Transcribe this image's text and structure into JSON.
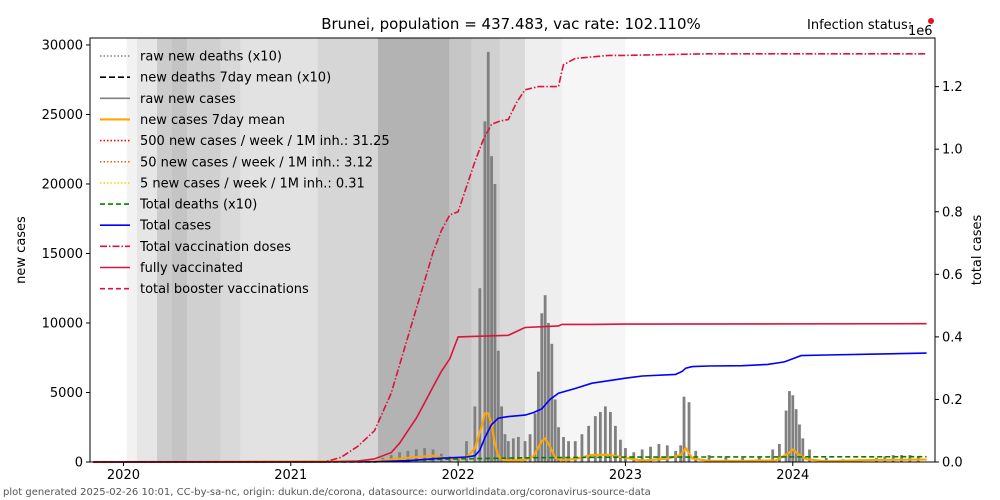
{
  "chart_data": {
    "type": "bar",
    "title": "Brunei, population = 437.483, vac rate: 102.110%",
    "infection_status_label": "Infection status:",
    "infection_status_color": "#e8101e",
    "ylabel": "new cases",
    "y2label": "total cases",
    "y2_exponent": "1e6",
    "xlim": [
      2019.8,
      2024.85
    ],
    "ylim": [
      0,
      30500
    ],
    "y2lim": [
      0,
      1.3555
    ],
    "x_ticks": [
      2020,
      2021,
      2022,
      2023,
      2024
    ],
    "x_tick_labels": [
      "2020",
      "2021",
      "2022",
      "2023",
      "2024"
    ],
    "y_ticks": [
      0,
      5000,
      10000,
      15000,
      20000,
      25000,
      30000
    ],
    "y_tick_labels": [
      "0",
      "5000",
      "10000",
      "15000",
      "20000",
      "25000",
      "30000"
    ],
    "y2_ticks": [
      0,
      0.2,
      0.4,
      0.6,
      0.8,
      1.0,
      1.2
    ],
    "y2_tick_labels": [
      "0.0",
      "0.2",
      "0.4",
      "0.6",
      "0.8",
      "1.0",
      "1.2"
    ],
    "legend": [
      {
        "label": "raw new deaths (x10)",
        "color": "#808080",
        "dash": "1.5,2"
      },
      {
        "label": "new deaths 7day mean (x10)",
        "color": "#000000",
        "dash": "6,3"
      },
      {
        "label": "raw new cases",
        "color": "#808080",
        "dash": ""
      },
      {
        "label": "new cases 7day mean",
        "color": "#ffa500",
        "dash": ""
      },
      {
        "label": "500 new cases / week / 1M inh.: 31.25",
        "color": "#ff0000",
        "dash": "1.5,2"
      },
      {
        "label": "50 new cases / week / 1M inh.: 3.12",
        "color": "#d2691e",
        "dash": "1.5,2"
      },
      {
        "label": "5 new cases / week / 1M inh.: 0.31",
        "color": "#ffd700",
        "dash": "1.5,2"
      },
      {
        "label": "Total deaths (x10)",
        "color": "#008000",
        "dash": "5,3"
      },
      {
        "label": "Total cases",
        "color": "#0000ff",
        "dash": ""
      },
      {
        "label": "Total vaccination doses",
        "color": "#dc143c",
        "dash": "7,2,1.5,2"
      },
      {
        "label": "fully vaccinated",
        "color": "#dc143c",
        "dash": ""
      },
      {
        "label": "total booster vaccinations",
        "color": "#dc143c",
        "dash": "5,3"
      }
    ],
    "background_bands": [
      {
        "x0": 2020.02,
        "x1": 2020.08,
        "shade": "#f2f2f2"
      },
      {
        "x0": 2020.08,
        "x1": 2020.2,
        "shade": "#e6e6e6"
      },
      {
        "x0": 2020.2,
        "x1": 2020.29,
        "shade": "#cccccc"
      },
      {
        "x0": 2020.29,
        "x1": 2020.38,
        "shade": "#c4c4c4"
      },
      {
        "x0": 2020.38,
        "x1": 2020.58,
        "shade": "#d0d0d0"
      },
      {
        "x0": 2020.58,
        "x1": 2020.7,
        "shade": "#d9d9d9"
      },
      {
        "x0": 2020.7,
        "x1": 2021.16,
        "shade": "#e2e2e2"
      },
      {
        "x0": 2021.16,
        "x1": 2021.52,
        "shade": "#d6d6d6"
      },
      {
        "x0": 2021.52,
        "x1": 2021.95,
        "shade": "#b3b3b3"
      },
      {
        "x0": 2021.95,
        "x1": 2022.08,
        "shade": "#c6c6c6"
      },
      {
        "x0": 2022.08,
        "x1": 2022.25,
        "shade": "#d0d0d0"
      },
      {
        "x0": 2022.25,
        "x1": 2022.4,
        "shade": "#dadada"
      },
      {
        "x0": 2022.4,
        "x1": 2022.62,
        "shade": "#eeeeee"
      },
      {
        "x0": 2022.62,
        "x1": 2023.0,
        "shade": "#f6f6f6"
      }
    ],
    "series": [
      {
        "name": "raw new cases",
        "kind": "bars",
        "axis": "left",
        "color": "#808080",
        "x": [
          2021.55,
          2021.6,
          2021.65,
          2021.7,
          2021.75,
          2021.8,
          2021.85,
          2021.9,
          2021.95,
          2022.0,
          2022.05,
          2022.1,
          2022.13,
          2022.16,
          2022.18,
          2022.2,
          2022.22,
          2022.24,
          2022.26,
          2022.28,
          2022.3,
          2022.33,
          2022.36,
          2022.4,
          2022.43,
          2022.46,
          2022.48,
          2022.5,
          2022.52,
          2022.54,
          2022.56,
          2022.58,
          2022.6,
          2022.63,
          2022.66,
          2022.7,
          2022.74,
          2022.78,
          2022.82,
          2022.85,
          2022.88,
          2022.91,
          2022.94,
          2022.97,
          2023.0,
          2023.05,
          2023.1,
          2023.15,
          2023.2,
          2023.25,
          2023.3,
          2023.33,
          2023.35,
          2023.38,
          2023.42,
          2023.5,
          2023.6,
          2023.7,
          2023.8,
          2023.88,
          2023.92,
          2023.96,
          2023.98,
          2024.0,
          2024.02,
          2024.04,
          2024.06,
          2024.1,
          2024.2,
          2024.3,
          2024.4,
          2024.5,
          2024.55,
          2024.6,
          2024.65,
          2024.7,
          2024.75
        ],
        "values": [
          300,
          500,
          700,
          800,
          900,
          1000,
          900,
          600,
          400,
          300,
          1500,
          4000,
          12500,
          24500,
          29500,
          22000,
          20000,
          8000,
          4000,
          2000,
          1500,
          1700,
          1800,
          1500,
          2000,
          3500,
          6500,
          10700,
          12000,
          10000,
          8500,
          4500,
          2500,
          1800,
          1500,
          1500,
          2000,
          2600,
          3300,
          3600,
          4000,
          3600,
          2600,
          1600,
          1000,
          700,
          900,
          1100,
          1300,
          1200,
          800,
          1200,
          4700,
          4300,
          800,
          500,
          400,
          300,
          400,
          900,
          1300,
          3700,
          5100,
          4800,
          3800,
          2700,
          1700,
          900,
          300,
          200,
          200,
          300,
          400,
          500,
          500,
          500,
          400
        ]
      },
      {
        "name": "new cases 7day mean",
        "kind": "line",
        "axis": "left",
        "color": "#ffa500",
        "x": [
          2019.82,
          2021.5,
          2021.7,
          2021.85,
          2021.95,
          2022.05,
          2022.1,
          2022.14,
          2022.16,
          2022.18,
          2022.2,
          2022.22,
          2022.24,
          2022.27,
          2022.3,
          2022.4,
          2022.45,
          2022.5,
          2022.52,
          2022.55,
          2022.58,
          2022.62,
          2022.7,
          2022.8,
          2022.9,
          2023.0,
          2023.1,
          2023.25,
          2023.33,
          2023.36,
          2023.4,
          2023.5,
          2023.7,
          2023.9,
          2023.97,
          2024.0,
          2024.03,
          2024.08,
          2024.2,
          2024.5,
          2024.8
        ],
        "values": [
          0,
          50,
          300,
          450,
          200,
          300,
          1000,
          2500,
          3500,
          3500,
          2700,
          1300,
          400,
          150,
          100,
          150,
          400,
          1500,
          1700,
          1100,
          300,
          120,
          220,
          500,
          520,
          300,
          100,
          250,
          500,
          1000,
          250,
          80,
          80,
          120,
          600,
          900,
          600,
          200,
          60,
          150,
          180
        ]
      },
      {
        "name": "Total deaths (x10)",
        "kind": "line",
        "axis": "left",
        "color": "#008000",
        "dash": "5,3",
        "x": [
          2019.82,
          2021.5,
          2021.9,
          2022.4,
          2023.0,
          2024.8
        ],
        "values": [
          0,
          10,
          200,
          300,
          350,
          380
        ]
      },
      {
        "name": "Total cases",
        "kind": "line",
        "axis": "right",
        "color": "#0000ff",
        "x": [
          2019.82,
          2021.5,
          2021.7,
          2021.9,
          2022.05,
          2022.1,
          2022.13,
          2022.16,
          2022.2,
          2022.24,
          2022.27,
          2022.3,
          2022.4,
          2022.45,
          2022.5,
          2022.55,
          2022.6,
          2022.7,
          2022.8,
          2022.9,
          2023.0,
          2023.1,
          2023.3,
          2023.34,
          2023.36,
          2023.4,
          2023.5,
          2023.7,
          2023.85,
          2023.95,
          2024.0,
          2024.05,
          2024.2,
          2024.5,
          2024.8
        ],
        "values": [
          0,
          0.0005,
          0.004,
          0.012,
          0.016,
          0.02,
          0.038,
          0.078,
          0.12,
          0.14,
          0.143,
          0.145,
          0.15,
          0.158,
          0.17,
          0.2,
          0.22,
          0.235,
          0.252,
          0.26,
          0.268,
          0.275,
          0.28,
          0.29,
          0.3,
          0.305,
          0.307,
          0.308,
          0.312,
          0.32,
          0.33,
          0.34,
          0.342,
          0.345,
          0.348
        ]
      },
      {
        "name": "Total vaccination doses",
        "kind": "line",
        "axis": "right",
        "color": "#dc143c",
        "dash": "7,2,1.5,2",
        "x": [
          2019.82,
          2021.2,
          2021.3,
          2021.4,
          2021.5,
          2021.6,
          2021.7,
          2021.8,
          2021.85,
          2021.9,
          2021.95,
          2022.0,
          2022.05,
          2022.1,
          2022.15,
          2022.2,
          2022.25,
          2022.3,
          2022.35,
          2022.4,
          2022.44,
          2022.48,
          2022.52,
          2022.6,
          2022.62,
          2022.63,
          2022.7,
          2022.8,
          2022.9,
          2023.0,
          2023.2,
          2023.5,
          2024.0,
          2024.5,
          2024.8
        ],
        "values": [
          0,
          0,
          0.015,
          0.05,
          0.1,
          0.22,
          0.4,
          0.58,
          0.67,
          0.74,
          0.79,
          0.8,
          0.88,
          0.96,
          1.03,
          1.08,
          1.09,
          1.095,
          1.15,
          1.19,
          1.195,
          1.2,
          1.2,
          1.2,
          1.25,
          1.27,
          1.29,
          1.295,
          1.3,
          1.3,
          1.302,
          1.305,
          1.305,
          1.305,
          1.305
        ]
      },
      {
        "name": "fully vaccinated",
        "kind": "line",
        "axis": "right",
        "color": "#dc143c",
        "x": [
          2019.82,
          2021.2,
          2021.4,
          2021.5,
          2021.6,
          2021.65,
          2021.7,
          2021.75,
          2021.8,
          2021.85,
          2021.9,
          2021.95,
          2022.0,
          2022.3,
          2022.4,
          2022.6,
          2022.62,
          2022.8,
          2023.0,
          2024.8
        ],
        "values": [
          0,
          0,
          0.003,
          0.01,
          0.03,
          0.06,
          0.1,
          0.14,
          0.19,
          0.24,
          0.29,
          0.33,
          0.4,
          0.405,
          0.43,
          0.435,
          0.44,
          0.44,
          0.441,
          0.442
        ]
      }
    ]
  },
  "footer": "plot generated 2025-02-26 10:01, CC-by-sa-nc, origin: dukun.de/corona, datasource: ourworldindata.org/coronavirus-source-data"
}
